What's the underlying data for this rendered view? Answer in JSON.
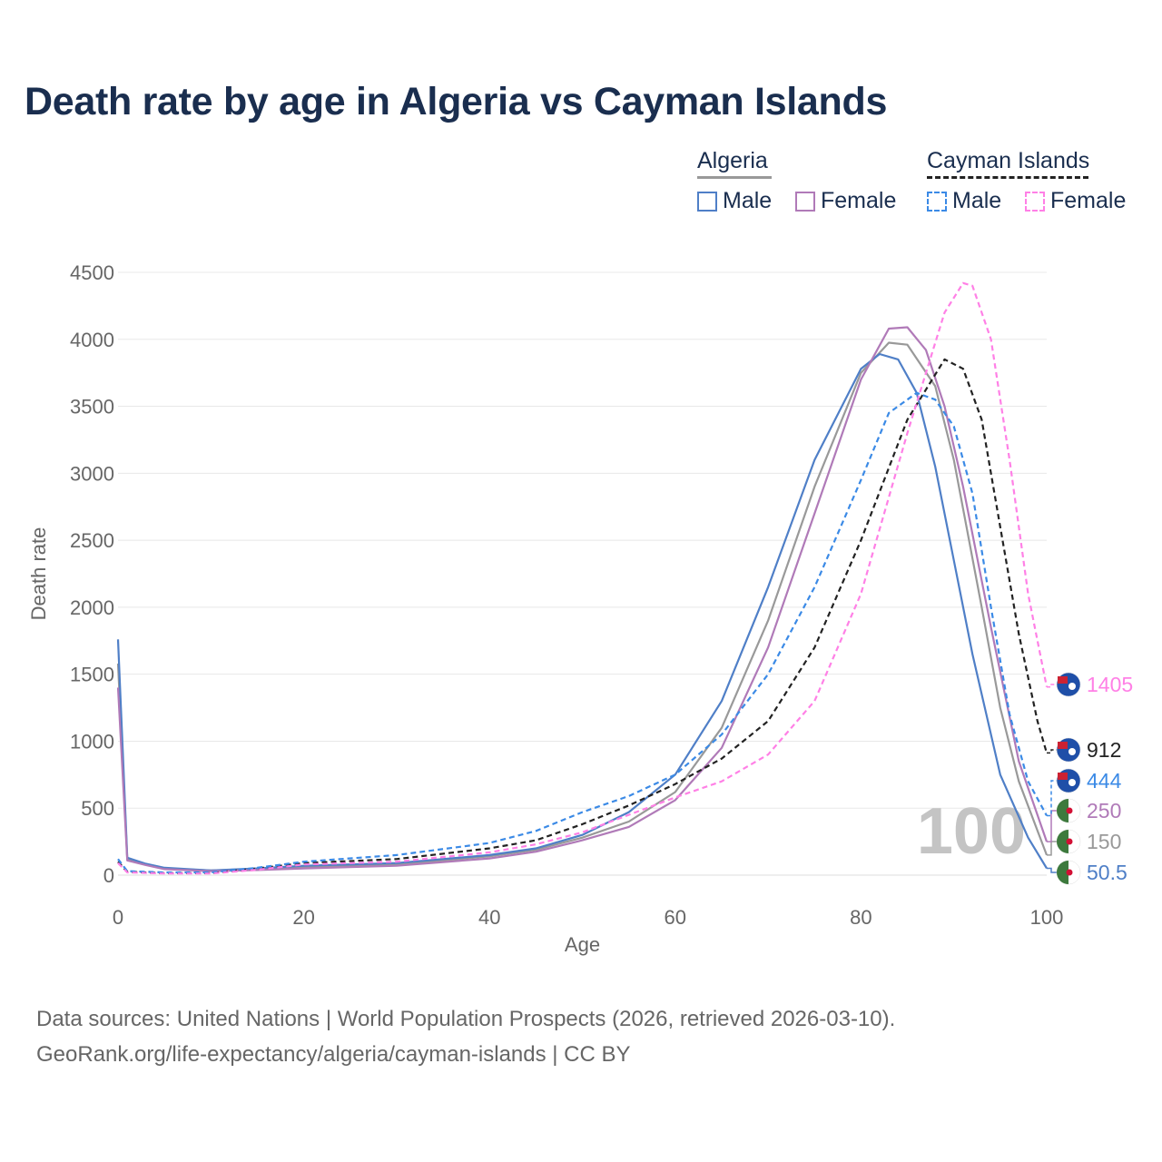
{
  "title": "Death rate by age in Algeria vs Cayman Islands",
  "legend": {
    "algeria": {
      "label": "Algeria",
      "male": "Male",
      "female": "Female"
    },
    "cayman": {
      "label": "Cayman Islands",
      "male": "Male",
      "female": "Female"
    }
  },
  "footer": {
    "line1": "Data sources: United Nations | World Population Prospects (2026, retrieved 2026-03-10).",
    "line2": "GeoRank.org/life-expectancy/algeria/cayman-islands | CC BY"
  },
  "chart_data": {
    "type": "line",
    "title": "Death rate by age in Algeria vs Cayman Islands",
    "xlabel": "Age",
    "ylabel": "Death rate",
    "xlim": [
      0,
      100
    ],
    "ylim": [
      0,
      4500
    ],
    "xticks": [
      0,
      20,
      40,
      60,
      80,
      100
    ],
    "yticks": [
      0,
      500,
      1000,
      1500,
      2000,
      2500,
      3000,
      3500,
      4000,
      4500
    ],
    "year_watermark": "100",
    "series": [
      {
        "name": "Algeria Total",
        "color": "#999999",
        "dash": false,
        "end_label": "150",
        "points": [
          [
            0,
            1580
          ],
          [
            1,
            120
          ],
          [
            3,
            80
          ],
          [
            5,
            50
          ],
          [
            10,
            35
          ],
          [
            15,
            45
          ],
          [
            20,
            60
          ],
          [
            30,
            80
          ],
          [
            40,
            140
          ],
          [
            45,
            190
          ],
          [
            50,
            280
          ],
          [
            55,
            400
          ],
          [
            60,
            620
          ],
          [
            65,
            1100
          ],
          [
            70,
            1900
          ],
          [
            75,
            2900
          ],
          [
            80,
            3750
          ],
          [
            83,
            3975
          ],
          [
            85,
            3960
          ],
          [
            88,
            3650
          ],
          [
            90,
            3100
          ],
          [
            93,
            2000
          ],
          [
            95,
            1250
          ],
          [
            97,
            700
          ],
          [
            100,
            150
          ]
        ]
      },
      {
        "name": "Algeria Male",
        "color": "#4f7fc7",
        "dash": false,
        "end_label": "50.5",
        "points": [
          [
            0,
            1760
          ],
          [
            1,
            130
          ],
          [
            3,
            85
          ],
          [
            5,
            55
          ],
          [
            10,
            35
          ],
          [
            15,
            50
          ],
          [
            20,
            70
          ],
          [
            30,
            90
          ],
          [
            40,
            150
          ],
          [
            45,
            200
          ],
          [
            50,
            300
          ],
          [
            55,
            470
          ],
          [
            60,
            750
          ],
          [
            65,
            1300
          ],
          [
            70,
            2150
          ],
          [
            75,
            3100
          ],
          [
            80,
            3780
          ],
          [
            82,
            3890
          ],
          [
            84,
            3850
          ],
          [
            86,
            3600
          ],
          [
            88,
            3050
          ],
          [
            90,
            2350
          ],
          [
            92,
            1650
          ],
          [
            95,
            750
          ],
          [
            98,
            280
          ],
          [
            100,
            50.5
          ]
        ]
      },
      {
        "name": "Algeria Female",
        "color": "#b07ab8",
        "dash": false,
        "end_label": "250",
        "points": [
          [
            0,
            1400
          ],
          [
            1,
            110
          ],
          [
            3,
            75
          ],
          [
            5,
            45
          ],
          [
            10,
            30
          ],
          [
            15,
            38
          ],
          [
            20,
            50
          ],
          [
            30,
            70
          ],
          [
            40,
            125
          ],
          [
            45,
            175
          ],
          [
            50,
            260
          ],
          [
            55,
            360
          ],
          [
            60,
            560
          ],
          [
            65,
            950
          ],
          [
            70,
            1700
          ],
          [
            75,
            2700
          ],
          [
            80,
            3700
          ],
          [
            83,
            4080
          ],
          [
            85,
            4090
          ],
          [
            87,
            3920
          ],
          [
            89,
            3500
          ],
          [
            91,
            2900
          ],
          [
            94,
            1850
          ],
          [
            97,
            850
          ],
          [
            100,
            250
          ]
        ]
      },
      {
        "name": "Cayman Islands Total",
        "color": "#222222",
        "dash": true,
        "end_label": "912",
        "points": [
          [
            0,
            100
          ],
          [
            1,
            25
          ],
          [
            5,
            15
          ],
          [
            10,
            15
          ],
          [
            15,
            50
          ],
          [
            20,
            90
          ],
          [
            30,
            120
          ],
          [
            40,
            200
          ],
          [
            45,
            260
          ],
          [
            50,
            380
          ],
          [
            55,
            520
          ],
          [
            60,
            680
          ],
          [
            65,
            870
          ],
          [
            70,
            1150
          ],
          [
            75,
            1700
          ],
          [
            80,
            2500
          ],
          [
            85,
            3400
          ],
          [
            89,
            3850
          ],
          [
            91,
            3780
          ],
          [
            93,
            3400
          ],
          [
            95,
            2600
          ],
          [
            97,
            1800
          ],
          [
            99,
            1150
          ],
          [
            100,
            912
          ]
        ]
      },
      {
        "name": "Cayman Islands Male",
        "color": "#3b8ae6",
        "dash": true,
        "end_label": "444",
        "points": [
          [
            0,
            120
          ],
          [
            1,
            30
          ],
          [
            5,
            20
          ],
          [
            10,
            20
          ],
          [
            15,
            55
          ],
          [
            20,
            100
          ],
          [
            30,
            150
          ],
          [
            40,
            240
          ],
          [
            45,
            330
          ],
          [
            50,
            470
          ],
          [
            55,
            590
          ],
          [
            60,
            750
          ],
          [
            65,
            1050
          ],
          [
            70,
            1500
          ],
          [
            75,
            2150
          ],
          [
            80,
            2950
          ],
          [
            83,
            3450
          ],
          [
            86,
            3600
          ],
          [
            88,
            3550
          ],
          [
            90,
            3350
          ],
          [
            92,
            2850
          ],
          [
            94,
            2000
          ],
          [
            96,
            1200
          ],
          [
            98,
            700
          ],
          [
            100,
            444
          ]
        ]
      },
      {
        "name": "Cayman Islands Female",
        "color": "#ff80e6",
        "dash": true,
        "end_label": "1405",
        "points": [
          [
            0,
            90
          ],
          [
            1,
            20
          ],
          [
            5,
            12
          ],
          [
            10,
            12
          ],
          [
            15,
            40
          ],
          [
            20,
            80
          ],
          [
            30,
            100
          ],
          [
            40,
            170
          ],
          [
            45,
            230
          ],
          [
            50,
            320
          ],
          [
            55,
            450
          ],
          [
            60,
            580
          ],
          [
            65,
            700
          ],
          [
            70,
            900
          ],
          [
            75,
            1300
          ],
          [
            80,
            2100
          ],
          [
            85,
            3300
          ],
          [
            89,
            4200
          ],
          [
            91,
            4420
          ],
          [
            92,
            4400
          ],
          [
            94,
            4000
          ],
          [
            96,
            3100
          ],
          [
            98,
            2100
          ],
          [
            100,
            1405
          ]
        ]
      }
    ]
  }
}
